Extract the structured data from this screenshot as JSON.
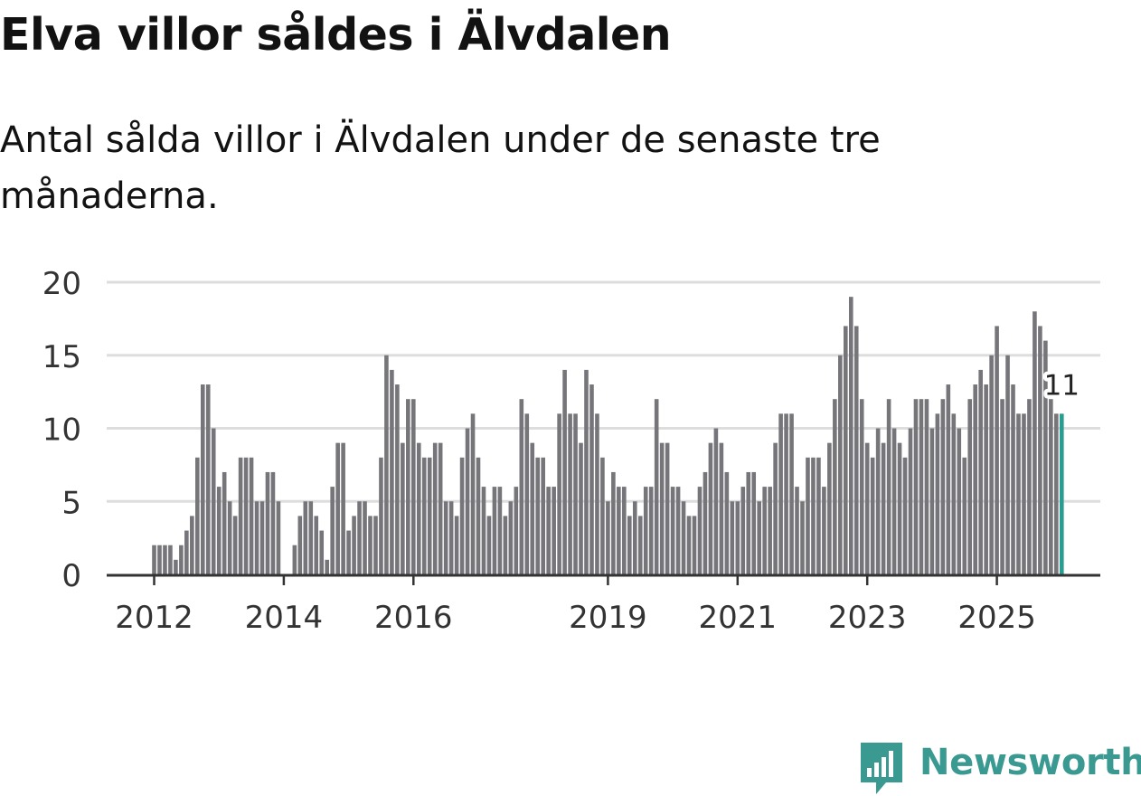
{
  "title": "Elva villor såldes i Älvdalen",
  "subtitle": "Antal sålda villor i Älvdalen under de senaste tre månaderna.",
  "brand": {
    "name": "Newsworthy",
    "logo_icon": "newsworthy-bar-chart-logo"
  },
  "colors": {
    "bar": "#76767a",
    "highlight": "#2a9d90",
    "grid": "#dddddd",
    "axis": "#333333",
    "brand": "#3a9a92"
  },
  "chart_data": {
    "type": "bar",
    "title": "Elva villor såldes i Älvdalen",
    "subtitle": "Antal sålda villor i Älvdalen under de senaste tre månaderna.",
    "xlabel": "",
    "ylabel": "",
    "ylim": [
      0,
      20
    ],
    "yticks": [
      0,
      5,
      10,
      15,
      20
    ],
    "grid": true,
    "x_start": "2012-01",
    "frequency": "monthly",
    "xtick_labels": [
      {
        "label": "2012",
        "index": 0
      },
      {
        "label": "2014",
        "index": 24
      },
      {
        "label": "2016",
        "index": 48
      },
      {
        "label": "2019",
        "index": 84
      },
      {
        "label": "2021",
        "index": 108
      },
      {
        "label": "2023",
        "index": 132
      },
      {
        "label": "2025",
        "index": 156
      }
    ],
    "values": [
      2,
      2,
      2,
      2,
      1,
      2,
      3,
      4,
      8,
      13,
      13,
      10,
      6,
      7,
      5,
      4,
      8,
      8,
      8,
      5,
      5,
      7,
      7,
      5,
      0,
      0,
      2,
      4,
      5,
      5,
      4,
      3,
      1,
      6,
      9,
      9,
      3,
      4,
      5,
      5,
      4,
      4,
      8,
      15,
      14,
      13,
      9,
      12,
      12,
      9,
      8,
      8,
      9,
      9,
      5,
      5,
      4,
      8,
      10,
      11,
      8,
      6,
      4,
      6,
      6,
      4,
      5,
      6,
      12,
      11,
      9,
      8,
      8,
      6,
      6,
      11,
      14,
      11,
      11,
      9,
      14,
      13,
      11,
      8,
      5,
      7,
      6,
      6,
      4,
      5,
      4,
      6,
      6,
      12,
      9,
      9,
      6,
      6,
      5,
      4,
      4,
      6,
      7,
      9,
      10,
      9,
      7,
      5,
      5,
      6,
      7,
      7,
      5,
      6,
      6,
      9,
      11,
      11,
      11,
      6,
      5,
      8,
      8,
      8,
      6,
      9,
      12,
      15,
      17,
      19,
      17,
      12,
      9,
      8,
      10,
      9,
      12,
      10,
      9,
      8,
      10,
      12,
      12,
      12,
      10,
      11,
      12,
      13,
      11,
      10,
      8,
      12,
      13,
      14,
      13,
      15,
      17,
      12,
      15,
      13,
      11,
      11,
      12,
      18,
      17,
      16,
      12,
      11
    ],
    "highlight": {
      "index": 168,
      "value": 11,
      "label": "11"
    }
  }
}
